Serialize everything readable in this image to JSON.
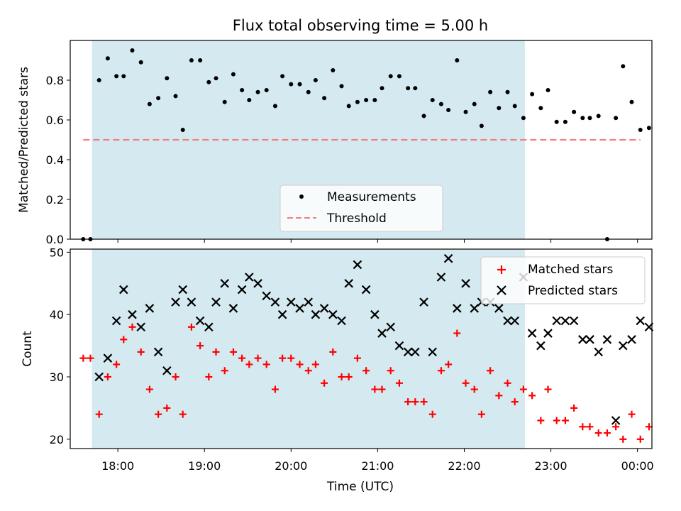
{
  "title": "Flux total observing time = 5.00 h",
  "chart_data": [
    {
      "type": "scatter",
      "panel": "top",
      "ylabel": "Matched/Predicted stars",
      "ylim": [
        0.0,
        1.0
      ],
      "yticks": [
        0.0,
        0.2,
        0.4,
        0.6,
        0.8
      ],
      "ytick_labels": [
        "0.0",
        "0.2",
        "0.4",
        "0.6",
        "0.8"
      ],
      "x_time_range": [
        "17:27",
        "00:10"
      ],
      "shaded_span": [
        "17:42",
        "22:42"
      ],
      "shade_color": "#d4eaf0",
      "legend": {
        "placement": "lower center",
        "entries": [
          "Measurements",
          "Threshold"
        ]
      },
      "series": [
        {
          "name": "Measurements",
          "color": "#000000",
          "marker": "dot",
          "x": [
            "17:36",
            "17:41",
            "17:47",
            "17:53",
            "17:59",
            "18:04",
            "18:10",
            "18:16",
            "18:22",
            "18:28",
            "18:34",
            "18:40",
            "18:45",
            "18:51",
            "18:57",
            "19:03",
            "19:08",
            "19:14",
            "19:20",
            "19:26",
            "19:31",
            "19:37",
            "19:43",
            "19:49",
            "19:54",
            "20:00",
            "20:06",
            "20:12",
            "20:17",
            "20:23",
            "20:29",
            "20:35",
            "20:40",
            "20:46",
            "20:52",
            "20:58",
            "21:03",
            "21:09",
            "21:15",
            "21:21",
            "21:26",
            "21:32",
            "21:38",
            "21:44",
            "21:49",
            "21:55",
            "22:01",
            "22:07",
            "22:12",
            "22:18",
            "22:24",
            "22:30",
            "22:35",
            "22:41",
            "22:47",
            "22:53",
            "22:58",
            "23:04",
            "23:10",
            "23:16",
            "23:22",
            "23:27",
            "23:33",
            "23:39",
            "23:45",
            "23:50",
            "23:56",
            "00:02",
            "00:08"
          ],
          "y": [
            0.0,
            0.0,
            0.8,
            0.91,
            0.82,
            0.82,
            0.95,
            0.89,
            0.68,
            0.71,
            0.81,
            0.72,
            0.55,
            0.9,
            0.9,
            0.79,
            0.81,
            0.69,
            0.83,
            0.75,
            0.7,
            0.74,
            0.75,
            0.67,
            0.82,
            0.78,
            0.78,
            0.74,
            0.8,
            0.71,
            0.85,
            0.77,
            0.67,
            0.69,
            0.7,
            0.7,
            0.76,
            0.82,
            0.82,
            0.76,
            0.76,
            0.62,
            0.7,
            0.68,
            0.65,
            0.9,
            0.64,
            0.68,
            0.57,
            0.74,
            0.66,
            0.74,
            0.67,
            0.61,
            0.73,
            0.66,
            0.75,
            0.59,
            0.59,
            0.64,
            0.61,
            0.61,
            0.62,
            0.0,
            0.61,
            0.87,
            0.69,
            0.55,
            0.56
          ]
        },
        {
          "name": "Threshold",
          "color": "#f08080",
          "style": "dashed",
          "x": [
            "17:36",
            "00:02"
          ],
          "y": [
            0.5,
            0.5
          ]
        }
      ]
    },
    {
      "type": "scatter",
      "panel": "bottom",
      "xlabel": "Time (UTC)",
      "ylabel": "Count",
      "ylim": [
        18.5,
        50.5
      ],
      "yticks": [
        20,
        30,
        40,
        50
      ],
      "ytick_labels": [
        "20",
        "30",
        "40",
        "50"
      ],
      "xticks": [
        "18:00",
        "19:00",
        "20:00",
        "21:00",
        "22:00",
        "23:00",
        "00:00"
      ],
      "xtick_labels": [
        "18:00",
        "19:00",
        "20:00",
        "21:00",
        "22:00",
        "23:00",
        "00:00"
      ],
      "legend": {
        "placement": "top-right",
        "entries": [
          "Matched stars",
          "Predicted stars"
        ]
      },
      "series": [
        {
          "name": "Matched stars",
          "color": "#ff0000",
          "marker": "plus",
          "x": [
            "17:36",
            "17:41",
            "17:47",
            "17:53",
            "17:59",
            "18:04",
            "18:10",
            "18:16",
            "18:22",
            "18:28",
            "18:34",
            "18:40",
            "18:45",
            "18:51",
            "18:57",
            "19:03",
            "19:08",
            "19:14",
            "19:20",
            "19:26",
            "19:31",
            "19:37",
            "19:43",
            "19:49",
            "19:54",
            "20:00",
            "20:06",
            "20:12",
            "20:17",
            "20:23",
            "20:29",
            "20:35",
            "20:40",
            "20:46",
            "20:52",
            "20:58",
            "21:03",
            "21:09",
            "21:15",
            "21:21",
            "21:26",
            "21:32",
            "21:38",
            "21:44",
            "21:49",
            "21:55",
            "22:01",
            "22:07",
            "22:12",
            "22:18",
            "22:24",
            "22:30",
            "22:35",
            "22:41",
            "22:47",
            "22:53",
            "22:58",
            "23:04",
            "23:10",
            "23:16",
            "23:22",
            "23:27",
            "23:33",
            "23:39",
            "23:45",
            "23:50",
            "23:56",
            "00:02",
            "00:08"
          ],
          "y": [
            33,
            33,
            24,
            30,
            32,
            36,
            38,
            34,
            28,
            24,
            25,
            30,
            24,
            38,
            35,
            30,
            34,
            31,
            34,
            33,
            32,
            33,
            32,
            28,
            33,
            33,
            32,
            31,
            32,
            29,
            34,
            30,
            30,
            33,
            31,
            28,
            28,
            31,
            29,
            26,
            26,
            26,
            24,
            31,
            32,
            37,
            29,
            28,
            24,
            31,
            27,
            29,
            26,
            28,
            27,
            23,
            28,
            23,
            23,
            25,
            22,
            22,
            21,
            21,
            22,
            20,
            24,
            20,
            22
          ]
        },
        {
          "name": "Predicted stars",
          "color": "#000000",
          "marker": "x",
          "x": [
            "17:47",
            "17:53",
            "17:59",
            "18:04",
            "18:10",
            "18:16",
            "18:22",
            "18:28",
            "18:34",
            "18:40",
            "18:45",
            "18:51",
            "18:57",
            "19:03",
            "19:08",
            "19:14",
            "19:20",
            "19:26",
            "19:31",
            "19:37",
            "19:43",
            "19:49",
            "19:54",
            "20:00",
            "20:06",
            "20:12",
            "20:17",
            "20:23",
            "20:29",
            "20:35",
            "20:40",
            "20:46",
            "20:52",
            "20:58",
            "21:03",
            "21:09",
            "21:15",
            "21:21",
            "21:26",
            "21:32",
            "21:38",
            "21:44",
            "21:49",
            "21:55",
            "22:01",
            "22:07",
            "22:12",
            "22:18",
            "22:24",
            "22:30",
            "22:35",
            "22:41",
            "22:47",
            "22:53",
            "22:58",
            "23:04",
            "23:10",
            "23:16",
            "23:22",
            "23:27",
            "23:33",
            "23:39",
            "23:45",
            "23:50",
            "23:56",
            "00:02",
            "00:08"
          ],
          "y": [
            30,
            33,
            39,
            44,
            40,
            38,
            41,
            34,
            31,
            42,
            44,
            42,
            39,
            38,
            42,
            45,
            41,
            44,
            46,
            45,
            43,
            42,
            40,
            42,
            41,
            42,
            40,
            41,
            40,
            39,
            45,
            48,
            44,
            40,
            37,
            38,
            35,
            34,
            34,
            42,
            34,
            46,
            49,
            41,
            45,
            41,
            42,
            42,
            41,
            39,
            39,
            46,
            37,
            35,
            37,
            39,
            39,
            39,
            36,
            36,
            34,
            36,
            23,
            35,
            36,
            39,
            38
          ]
        }
      ]
    }
  ]
}
